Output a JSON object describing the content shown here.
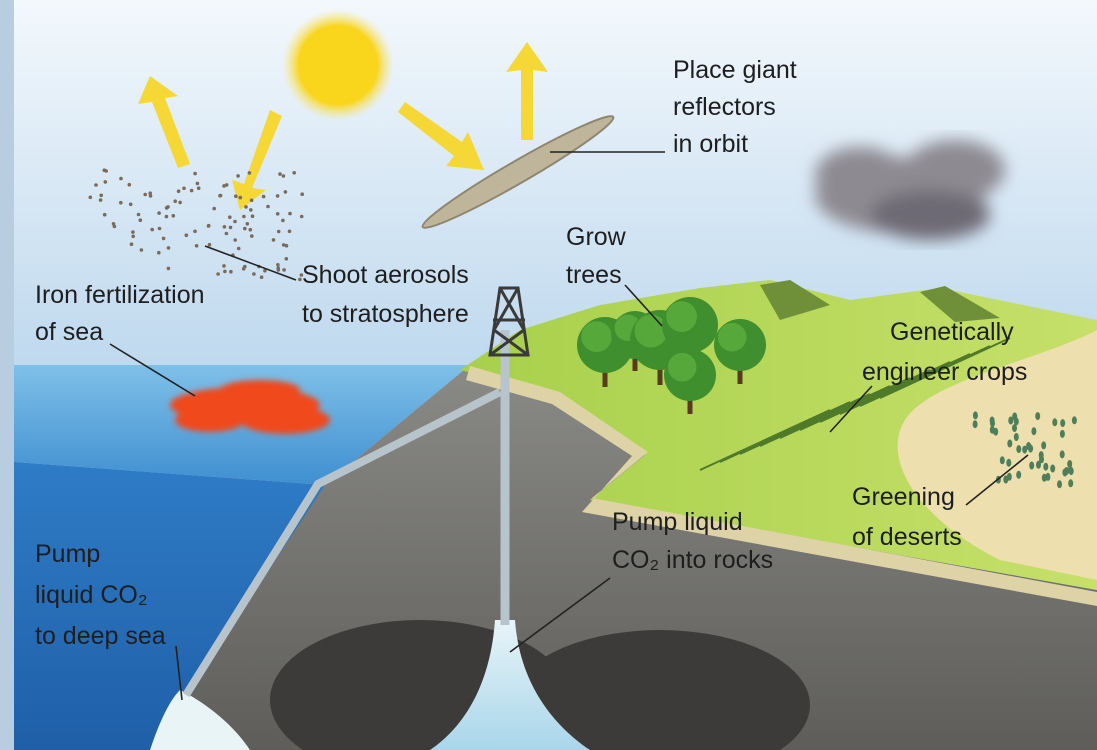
{
  "labels": [
    {
      "lines": [
        "Place giant",
        "reflectors",
        "in orbit"
      ]
    },
    {
      "lines": [
        "Shoot aerosols",
        "to stratosphere"
      ]
    },
    {
      "lines": [
        "Iron fertilization",
        "of sea"
      ]
    },
    {
      "lines": [
        "Grow",
        "trees"
      ]
    },
    {
      "lines": [
        "Genetically",
        "engineer crops"
      ]
    },
    {
      "lines": [
        "Greening",
        "of deserts"
      ]
    },
    {
      "lines": [
        "Pump liquid",
        "CO₂ into rocks"
      ]
    },
    {
      "lines": [
        "Pump",
        "liquid CO₂",
        "to deep sea"
      ]
    }
  ]
}
